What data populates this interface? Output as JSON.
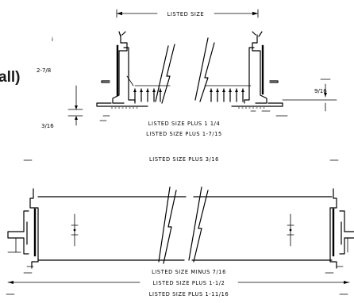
{
  "fragments": {
    "left_edge_text": "all)",
    "marker_i": "i"
  },
  "top_view": {
    "top_dimension": "LISTED SIZE",
    "left_height": "2-7/8",
    "left_lip": "3/16",
    "right_depth": "9/16",
    "inner_line_1": "LISTED SIZE PLUS 1 1/4",
    "inner_line_2": "LISTED SIZE PLUS 1-7/15",
    "bottom_dimension": "LISTED SIZE PLUS 3/16"
  },
  "bottom_view": {
    "line_1": "LISTED SIZE MINUS 7/16",
    "line_2": "LISTED SIZE PLUS 1-1/2",
    "line_3": "LISTED SIZE PLUS 1-11/16"
  }
}
